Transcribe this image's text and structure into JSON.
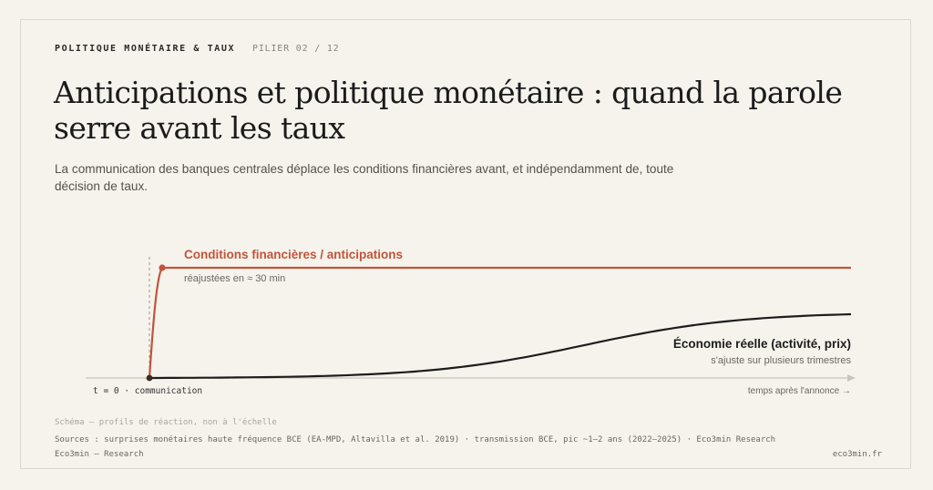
{
  "header": {
    "kicker": "POLITIQUE MONÉTAIRE & TAUX",
    "pillar": "PILIER 02 / 12",
    "title": "Anticipations et politique monétaire : quand la parole serre avant les taux",
    "subtitle": "La communication des banques centrales déplace les conditions financières avant, et indépendamment de, toute décision de taux."
  },
  "chart_data": {
    "type": "line",
    "series": [
      {
        "name": "Conditions financières / anticipations",
        "note": "réajustées en ≈ 30 min",
        "color": "#c0553a",
        "shape": "fast-step"
      },
      {
        "name": "Économie réelle (activité, prix)",
        "note": "s'ajuste sur plusieurs trimestres",
        "color": "#1d1d1d",
        "shape": "slow-s-curve"
      }
    ],
    "marker_label": "t = 0 · communication",
    "xlabel": "temps après l'annonce →"
  },
  "footer": {
    "note": "Schéma — profils de réaction, non à l'échelle",
    "sources": "Sources : surprises monétaires haute fréquence BCE (EA-MPD, Altavilla et al. 2019) · transmission BCE, pic ~1–2 ans (2022–2025) · Eco3min Research",
    "brand": "Eco3min — Research",
    "site": "eco3min.fr"
  }
}
